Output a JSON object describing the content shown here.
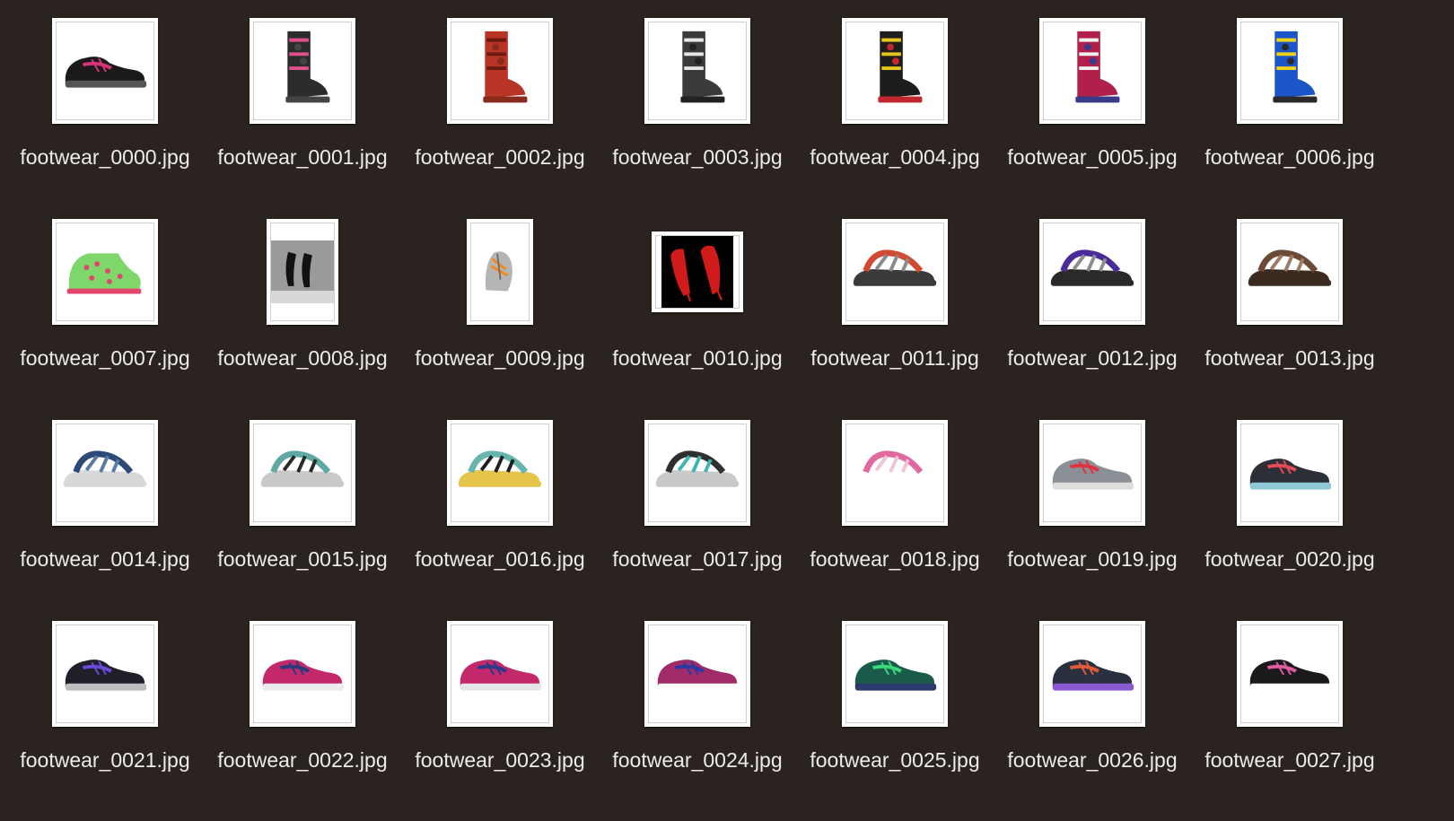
{
  "files": [
    {
      "name": "footwear_0000.jpg",
      "shape": "square",
      "kind": "sneaker",
      "colors": [
        "#1a1a1a",
        "#d6337a",
        "#555555"
      ]
    },
    {
      "name": "footwear_0001.jpg",
      "shape": "square",
      "kind": "boot",
      "colors": [
        "#2c2c2c",
        "#e0508a",
        "#444444"
      ]
    },
    {
      "name": "footwear_0002.jpg",
      "shape": "square",
      "kind": "boot",
      "colors": [
        "#b83424",
        "#6b1a12",
        "#8a2a1c"
      ]
    },
    {
      "name": "footwear_0003.jpg",
      "shape": "square",
      "kind": "boot",
      "colors": [
        "#3a3a3a",
        "#e6e6e6",
        "#222222"
      ]
    },
    {
      "name": "footwear_0004.jpg",
      "shape": "square",
      "kind": "boot",
      "colors": [
        "#1d1d1d",
        "#e4c61e",
        "#c2262e"
      ]
    },
    {
      "name": "footwear_0005.jpg",
      "shape": "square",
      "kind": "boot",
      "colors": [
        "#b0204a",
        "#f2f2f2",
        "#3a3a8a"
      ]
    },
    {
      "name": "footwear_0006.jpg",
      "shape": "square",
      "kind": "boot",
      "colors": [
        "#1c55c7",
        "#f0d21a",
        "#2a2a2a"
      ]
    },
    {
      "name": "footwear_0007.jpg",
      "shape": "square",
      "kind": "bootie",
      "colors": [
        "#7fd66a",
        "#e2466f",
        "#ffffff"
      ]
    },
    {
      "name": "footwear_0008.jpg",
      "shape": "portrait",
      "kind": "heels-pair",
      "colors": [
        "#111111",
        "#9a9a9a",
        "#d8d8d8"
      ]
    },
    {
      "name": "footwear_0009.jpg",
      "shape": "portrait-mid",
      "kind": "sneaker-top",
      "colors": [
        "#b5b5b5",
        "#f08a1c",
        "#6a6a6a"
      ]
    },
    {
      "name": "footwear_0010.jpg",
      "shape": "wide",
      "kind": "heels-red",
      "colors": [
        "#000000",
        "#d11a1a",
        "#ffffff"
      ]
    },
    {
      "name": "footwear_0011.jpg",
      "shape": "square",
      "kind": "sandal",
      "colors": [
        "#d34a33",
        "#8a8a8a",
        "#3a3a3a"
      ]
    },
    {
      "name": "footwear_0012.jpg",
      "shape": "square",
      "kind": "sandal",
      "colors": [
        "#4b2a9a",
        "#8d8d8d",
        "#2a2a2a"
      ]
    },
    {
      "name": "footwear_0013.jpg",
      "shape": "square",
      "kind": "sandal",
      "colors": [
        "#6b4a36",
        "#9c7a63",
        "#3a2a20"
      ]
    },
    {
      "name": "footwear_0014.jpg",
      "shape": "square",
      "kind": "sandal",
      "colors": [
        "#2b4a78",
        "#5a7aa6",
        "#d8d8d8"
      ]
    },
    {
      "name": "footwear_0015.jpg",
      "shape": "square",
      "kind": "sandal",
      "colors": [
        "#5fa8a3",
        "#2a2a2a",
        "#c9c9c9"
      ]
    },
    {
      "name": "footwear_0016.jpg",
      "shape": "square",
      "kind": "sandal",
      "colors": [
        "#66b6ae",
        "#1f1f1f",
        "#e5c44a"
      ]
    },
    {
      "name": "footwear_0017.jpg",
      "shape": "square",
      "kind": "sandal",
      "colors": [
        "#2f2f2f",
        "#3fb6b0",
        "#c9c9c9"
      ]
    },
    {
      "name": "footwear_0018.jpg",
      "shape": "square",
      "kind": "sandal",
      "colors": [
        "#e06aa0",
        "#f2c2d6",
        "#ffffff"
      ]
    },
    {
      "name": "footwear_0019.jpg",
      "shape": "square",
      "kind": "sneaker",
      "colors": [
        "#8a8f96",
        "#e0333b",
        "#dddddd"
      ]
    },
    {
      "name": "footwear_0020.jpg",
      "shape": "square",
      "kind": "sneaker",
      "colors": [
        "#2b2f36",
        "#e24a55",
        "#8fc9d6"
      ]
    },
    {
      "name": "footwear_0021.jpg",
      "shape": "square",
      "kind": "sneaker",
      "colors": [
        "#1f1f2a",
        "#6a4ad6",
        "#bdbdbd"
      ]
    },
    {
      "name": "footwear_0022.jpg",
      "shape": "square",
      "kind": "sneaker",
      "colors": [
        "#c2286a",
        "#2a3a7a",
        "#ececec"
      ]
    },
    {
      "name": "footwear_0023.jpg",
      "shape": "square",
      "kind": "sneaker",
      "colors": [
        "#c2286a",
        "#2a3a8a",
        "#e6e6e6"
      ]
    },
    {
      "name": "footwear_0024.jpg",
      "shape": "square",
      "kind": "sneaker",
      "colors": [
        "#a02a6a",
        "#2a3aa0",
        "#ffffff"
      ]
    },
    {
      "name": "footwear_0025.jpg",
      "shape": "square",
      "kind": "sneaker",
      "colors": [
        "#1a5a4a",
        "#3ad67a",
        "#2a3a6a"
      ]
    },
    {
      "name": "footwear_0026.jpg",
      "shape": "square",
      "kind": "sneaker",
      "colors": [
        "#2a3040",
        "#e05a3a",
        "#8a5ad0"
      ]
    },
    {
      "name": "footwear_0027.jpg",
      "shape": "square",
      "kind": "sneaker",
      "colors": [
        "#1a1a1a",
        "#e05aa0",
        "#ffffff"
      ]
    }
  ]
}
